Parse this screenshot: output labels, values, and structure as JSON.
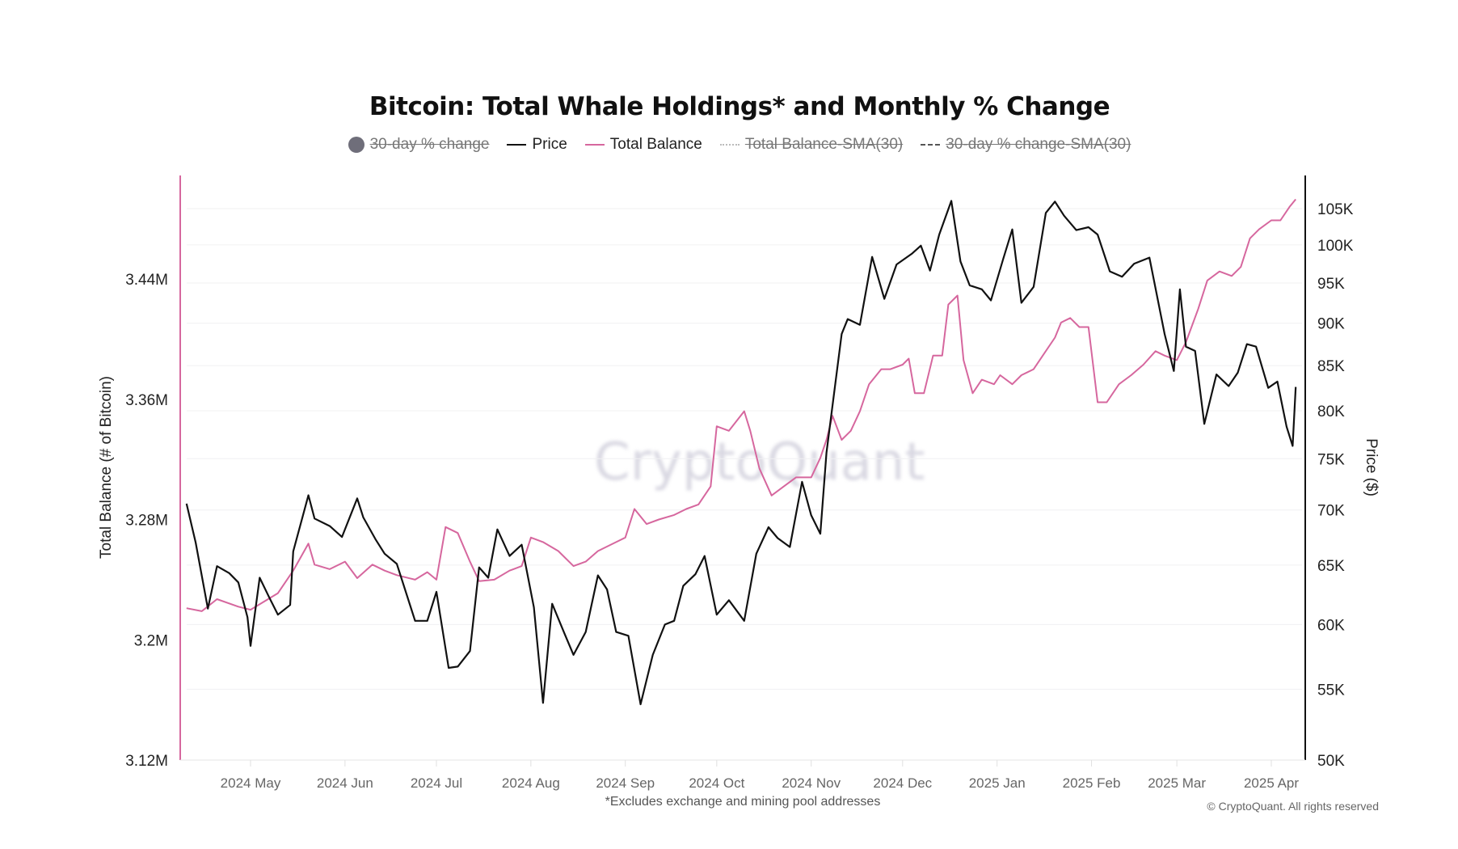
{
  "chart_data": {
    "type": "line",
    "title": "Bitcoin: Total Whale Holdings* and Monthly % Change",
    "footnote": "*Excludes exchange and mining pool addresses",
    "copyright": "© CryptoQuant. All rights reserved",
    "watermark": "CryptoQuant",
    "legend": [
      {
        "label": "30-day % change",
        "color": "#6f6e7a",
        "marker": "circle",
        "hidden": true
      },
      {
        "label": "Price",
        "color": "#111111",
        "marker": "line",
        "hidden": false
      },
      {
        "label": "Total Balance",
        "color": "#d6679e",
        "marker": "line",
        "hidden": false
      },
      {
        "label": "Total Balance-SMA(30)",
        "color": "#bbbbbb",
        "marker": "dotted",
        "hidden": true
      },
      {
        "label": "30-day % change-SMA(30)",
        "color": "#555555",
        "marker": "dashed",
        "hidden": true
      }
    ],
    "legend_position": "top-center",
    "grid": true,
    "x_ticks": [
      "2024 May",
      "2024 Jun",
      "2024 Jul",
      "2024 Aug",
      "2024 Sep",
      "2024 Oct",
      "2024 Nov",
      "2024 Dec",
      "2025 Jan",
      "2025 Feb",
      "2025 Mar",
      "2025 Apr"
    ],
    "x_tick_dates": [
      "2024-05-01",
      "2024-06-01",
      "2024-07-01",
      "2024-08-01",
      "2024-09-01",
      "2024-10-01",
      "2024-11-01",
      "2024-12-01",
      "2025-01-01",
      "2025-02-01",
      "2025-03-01",
      "2025-04-01"
    ],
    "y_left": {
      "label": "Total Balance (# of Bitcoin)",
      "range": [
        3120000,
        3500000
      ],
      "ticks": [
        3120000,
        3200000,
        3280000,
        3360000,
        3440000
      ],
      "tick_labels": [
        "3.12M",
        "3.2M",
        "3.28M",
        "3.36M",
        "3.44M"
      ],
      "color": "#d6679e"
    },
    "y_right": {
      "label": "Price ($)",
      "scale": "log",
      "range": [
        50000,
        108000
      ],
      "ticks": [
        50000,
        55000,
        60000,
        65000,
        70000,
        75000,
        80000,
        85000,
        90000,
        95000,
        100000,
        105000
      ],
      "tick_labels": [
        "50K",
        "55K",
        "60K",
        "65K",
        "70K",
        "75K",
        "80K",
        "85K",
        "90K",
        "95K",
        "100K",
        "105K"
      ],
      "color": "#111111"
    },
    "series": [
      {
        "name": "Price",
        "axis": "right",
        "color": "#111111",
        "points": [
          [
            "2024-04-10",
            70600
          ],
          [
            "2024-04-13",
            67000
          ],
          [
            "2024-04-17",
            61300
          ],
          [
            "2024-04-20",
            64900
          ],
          [
            "2024-04-24",
            64300
          ],
          [
            "2024-04-27",
            63500
          ],
          [
            "2024-04-30",
            60600
          ],
          [
            "2024-05-01",
            58300
          ],
          [
            "2024-05-04",
            63900
          ],
          [
            "2024-05-07",
            62300
          ],
          [
            "2024-05-10",
            60800
          ],
          [
            "2024-05-14",
            61600
          ],
          [
            "2024-05-15",
            66200
          ],
          [
            "2024-05-20",
            71400
          ],
          [
            "2024-05-22",
            69200
          ],
          [
            "2024-05-27",
            68500
          ],
          [
            "2024-05-31",
            67500
          ],
          [
            "2024-06-05",
            71100
          ],
          [
            "2024-06-07",
            69300
          ],
          [
            "2024-06-11",
            67300
          ],
          [
            "2024-06-14",
            66000
          ],
          [
            "2024-06-18",
            65100
          ],
          [
            "2024-06-24",
            60300
          ],
          [
            "2024-06-28",
            60300
          ],
          [
            "2024-07-01",
            62700
          ],
          [
            "2024-07-05",
            56600
          ],
          [
            "2024-07-08",
            56700
          ],
          [
            "2024-07-12",
            57900
          ],
          [
            "2024-07-15",
            64800
          ],
          [
            "2024-07-18",
            63900
          ],
          [
            "2024-07-21",
            68200
          ],
          [
            "2024-07-25",
            65800
          ],
          [
            "2024-07-29",
            66800
          ],
          [
            "2024-08-02",
            61400
          ],
          [
            "2024-08-05",
            54000
          ],
          [
            "2024-08-08",
            61700
          ],
          [
            "2024-08-12",
            59300
          ],
          [
            "2024-08-15",
            57600
          ],
          [
            "2024-08-19",
            59400
          ],
          [
            "2024-08-23",
            64100
          ],
          [
            "2024-08-26",
            62900
          ],
          [
            "2024-08-29",
            59400
          ],
          [
            "2024-09-02",
            59100
          ],
          [
            "2024-09-06",
            53900
          ],
          [
            "2024-09-10",
            57600
          ],
          [
            "2024-09-14",
            60000
          ],
          [
            "2024-09-17",
            60300
          ],
          [
            "2024-09-20",
            63200
          ],
          [
            "2024-09-24",
            64200
          ],
          [
            "2024-09-27",
            65800
          ],
          [
            "2024-10-01",
            60800
          ],
          [
            "2024-10-05",
            62000
          ],
          [
            "2024-10-10",
            60300
          ],
          [
            "2024-10-14",
            66000
          ],
          [
            "2024-10-18",
            68400
          ],
          [
            "2024-10-21",
            67400
          ],
          [
            "2024-10-25",
            66600
          ],
          [
            "2024-10-29",
            72700
          ],
          [
            "2024-11-01",
            69500
          ],
          [
            "2024-11-04",
            67800
          ],
          [
            "2024-11-06",
            75600
          ],
          [
            "2024-11-11",
            88700
          ],
          [
            "2024-11-13",
            90500
          ],
          [
            "2024-11-17",
            89800
          ],
          [
            "2024-11-21",
            98400
          ],
          [
            "2024-11-25",
            93000
          ],
          [
            "2024-11-29",
            97400
          ],
          [
            "2024-12-04",
            98800
          ],
          [
            "2024-12-07",
            99900
          ],
          [
            "2024-12-10",
            96600
          ],
          [
            "2024-12-13",
            101400
          ],
          [
            "2024-12-17",
            106100
          ],
          [
            "2024-12-20",
            97800
          ],
          [
            "2024-12-23",
            94700
          ],
          [
            "2024-12-27",
            94200
          ],
          [
            "2024-12-30",
            92800
          ],
          [
            "2025-01-03",
            98100
          ],
          [
            "2025-01-06",
            102100
          ],
          [
            "2025-01-09",
            92500
          ],
          [
            "2025-01-13",
            94500
          ],
          [
            "2025-01-17",
            104400
          ],
          [
            "2025-01-20",
            106000
          ],
          [
            "2025-01-23",
            104000
          ],
          [
            "2025-01-27",
            102000
          ],
          [
            "2025-01-31",
            102400
          ],
          [
            "2025-02-03",
            101400
          ],
          [
            "2025-02-07",
            96500
          ],
          [
            "2025-02-11",
            95800
          ],
          [
            "2025-02-15",
            97500
          ],
          [
            "2025-02-20",
            98300
          ],
          [
            "2025-02-25",
            88700
          ],
          [
            "2025-02-28",
            84400
          ],
          [
            "2025-03-02",
            94200
          ],
          [
            "2025-03-04",
            87200
          ],
          [
            "2025-03-07",
            86700
          ],
          [
            "2025-03-10",
            78600
          ],
          [
            "2025-03-14",
            84000
          ],
          [
            "2025-03-18",
            82700
          ],
          [
            "2025-03-21",
            84200
          ],
          [
            "2025-03-24",
            87500
          ],
          [
            "2025-03-27",
            87200
          ],
          [
            "2025-03-31",
            82500
          ],
          [
            "2025-04-03",
            83200
          ],
          [
            "2025-04-06",
            78300
          ],
          [
            "2025-04-08",
            76300
          ],
          [
            "2025-04-09",
            82600
          ]
        ]
      },
      {
        "name": "Total Balance",
        "axis": "left",
        "color": "#d6679e",
        "points": [
          [
            "2024-04-10",
            3221000
          ],
          [
            "2024-04-15",
            3219000
          ],
          [
            "2024-04-20",
            3227000
          ],
          [
            "2024-04-27",
            3222000
          ],
          [
            "2024-05-01",
            3220000
          ],
          [
            "2024-05-10",
            3231000
          ],
          [
            "2024-05-15",
            3246000
          ],
          [
            "2024-05-20",
            3264000
          ],
          [
            "2024-05-22",
            3250000
          ],
          [
            "2024-05-27",
            3247000
          ],
          [
            "2024-06-01",
            3252000
          ],
          [
            "2024-06-05",
            3241000
          ],
          [
            "2024-06-10",
            3250000
          ],
          [
            "2024-06-14",
            3246000
          ],
          [
            "2024-06-18",
            3243000
          ],
          [
            "2024-06-24",
            3240000
          ],
          [
            "2024-06-28",
            3245000
          ],
          [
            "2024-07-01",
            3240000
          ],
          [
            "2024-07-04",
            3275000
          ],
          [
            "2024-07-08",
            3271000
          ],
          [
            "2024-07-12",
            3252000
          ],
          [
            "2024-07-15",
            3239000
          ],
          [
            "2024-07-20",
            3240000
          ],
          [
            "2024-07-25",
            3246000
          ],
          [
            "2024-07-29",
            3249000
          ],
          [
            "2024-08-01",
            3268000
          ],
          [
            "2024-08-05",
            3265000
          ],
          [
            "2024-08-10",
            3259000
          ],
          [
            "2024-08-15",
            3249000
          ],
          [
            "2024-08-19",
            3252000
          ],
          [
            "2024-08-23",
            3259000
          ],
          [
            "2024-08-29",
            3265000
          ],
          [
            "2024-09-01",
            3268000
          ],
          [
            "2024-09-04",
            3287000
          ],
          [
            "2024-09-08",
            3277000
          ],
          [
            "2024-09-12",
            3280000
          ],
          [
            "2024-09-17",
            3283000
          ],
          [
            "2024-09-21",
            3287000
          ],
          [
            "2024-09-25",
            3290000
          ],
          [
            "2024-09-29",
            3302000
          ],
          [
            "2024-10-01",
            3342000
          ],
          [
            "2024-10-05",
            3339000
          ],
          [
            "2024-10-10",
            3352000
          ],
          [
            "2024-10-12",
            3339000
          ],
          [
            "2024-10-15",
            3314000
          ],
          [
            "2024-10-19",
            3296000
          ],
          [
            "2024-10-23",
            3302000
          ],
          [
            "2024-10-27",
            3308000
          ],
          [
            "2024-11-01",
            3308000
          ],
          [
            "2024-11-04",
            3321000
          ],
          [
            "2024-11-06",
            3333000
          ],
          [
            "2024-11-08",
            3349000
          ],
          [
            "2024-11-11",
            3333000
          ],
          [
            "2024-11-14",
            3339000
          ],
          [
            "2024-11-17",
            3352000
          ],
          [
            "2024-11-20",
            3370000
          ],
          [
            "2024-11-24",
            3380000
          ],
          [
            "2024-11-27",
            3380000
          ],
          [
            "2024-12-01",
            3383000
          ],
          [
            "2024-12-03",
            3387000
          ],
          [
            "2024-12-05",
            3364000
          ],
          [
            "2024-12-08",
            3364000
          ],
          [
            "2024-12-11",
            3389000
          ],
          [
            "2024-12-14",
            3389000
          ],
          [
            "2024-12-16",
            3423000
          ],
          [
            "2024-12-19",
            3429000
          ],
          [
            "2024-12-21",
            3386000
          ],
          [
            "2024-12-24",
            3364000
          ],
          [
            "2024-12-27",
            3373000
          ],
          [
            "2024-12-31",
            3370000
          ],
          [
            "2025-01-02",
            3376000
          ],
          [
            "2025-01-06",
            3370000
          ],
          [
            "2025-01-09",
            3376000
          ],
          [
            "2025-01-13",
            3380000
          ],
          [
            "2025-01-16",
            3389000
          ],
          [
            "2025-01-20",
            3401000
          ],
          [
            "2025-01-22",
            3411000
          ],
          [
            "2025-01-25",
            3414000
          ],
          [
            "2025-01-28",
            3408000
          ],
          [
            "2025-01-31",
            3408000
          ],
          [
            "2025-02-03",
            3358000
          ],
          [
            "2025-02-06",
            3358000
          ],
          [
            "2025-02-10",
            3370000
          ],
          [
            "2025-02-14",
            3376000
          ],
          [
            "2025-02-18",
            3383000
          ],
          [
            "2025-02-22",
            3392000
          ],
          [
            "2025-02-25",
            3389000
          ],
          [
            "2025-03-01",
            3386000
          ],
          [
            "2025-03-04",
            3398000
          ],
          [
            "2025-03-08",
            3420000
          ],
          [
            "2025-03-11",
            3439000
          ],
          [
            "2025-03-15",
            3445000
          ],
          [
            "2025-03-19",
            3442000
          ],
          [
            "2025-03-22",
            3448000
          ],
          [
            "2025-03-25",
            3467000
          ],
          [
            "2025-03-28",
            3473000
          ],
          [
            "2025-04-01",
            3479000
          ],
          [
            "2025-04-04",
            3479000
          ],
          [
            "2025-04-07",
            3488000
          ],
          [
            "2025-04-09",
            3493000
          ]
        ]
      }
    ]
  }
}
